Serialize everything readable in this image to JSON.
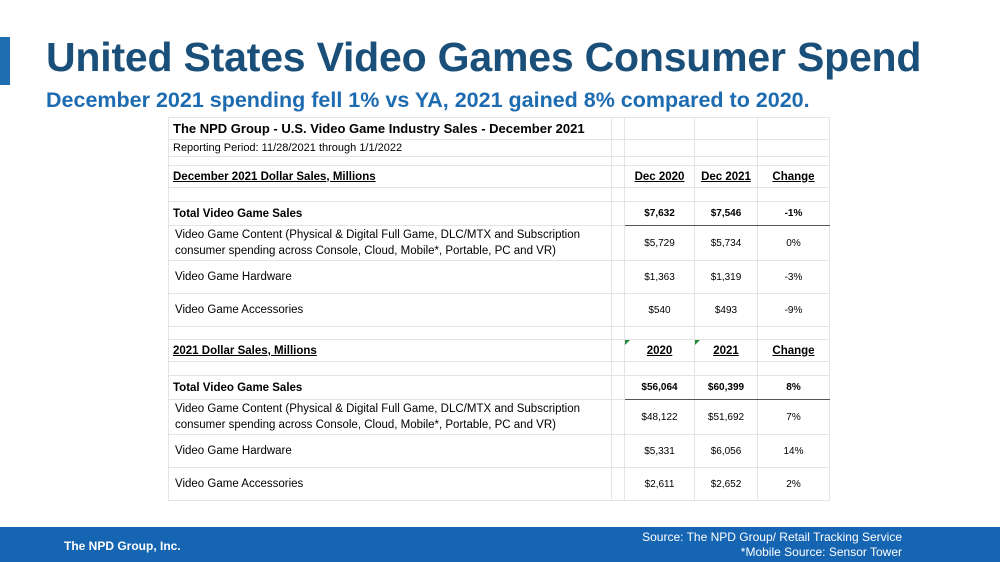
{
  "header": {
    "title": "United States Video Games Consumer Spend",
    "subtitle": "December 2021 spending fell 1% vs YA, 2021 gained 8% compared to 2020."
  },
  "table": {
    "title": "The NPD Group - U.S. Video Game Industry Sales - December 2021",
    "period": "Reporting Period: 11/28/2021 through 1/1/2022",
    "sections": [
      {
        "heading": "December 2021 Dollar Sales, Millions",
        "columns": [
          "Dec 2020",
          "Dec 2021",
          "Change"
        ],
        "total": {
          "label": "Total Video Game Sales",
          "values": [
            "$7,632",
            "$7,546",
            "-1%"
          ]
        },
        "rows": [
          {
            "label": "Video Game Content (Physical & Digital Full Game, DLC/MTX and Subscription consumer spending across Console, Cloud, Mobile*, Portable, PC and VR)",
            "values": [
              "$5,729",
              "$5,734",
              "0%"
            ]
          },
          {
            "label": "Video Game Hardware",
            "values": [
              "$1,363",
              "$1,319",
              "-3%"
            ]
          },
          {
            "label": "Video Game Accessories",
            "values": [
              "$540",
              "$493",
              "-9%"
            ]
          }
        ]
      },
      {
        "heading": "2021 Dollar Sales, Millions",
        "columns": [
          "2020",
          "2021",
          "Change"
        ],
        "total": {
          "label": "Total Video Game Sales",
          "values": [
            "$56,064",
            "$60,399",
            "8%"
          ]
        },
        "rows": [
          {
            "label": "Video Game Content (Physical & Digital Full Game, DLC/MTX and Subscription consumer spending across Console, Cloud, Mobile*, Portable, PC and VR)",
            "values": [
              "$48,122",
              "$51,692",
              "7%"
            ]
          },
          {
            "label": "Video Game Hardware",
            "values": [
              "$5,331",
              "$6,056",
              "14%"
            ]
          },
          {
            "label": "Video Game Accessories",
            "values": [
              "$2,611",
              "$2,652",
              "2%"
            ]
          }
        ]
      }
    ]
  },
  "footer": {
    "company": "The NPD Group, Inc.",
    "source": "Source: The NPD Group/ Retail Tracking Service",
    "mobile_source": "*Mobile Source: Sensor Tower"
  },
  "colors": {
    "title": "#1a4f79",
    "subtitle": "#1d6bb0",
    "footer_band": "#1565b3",
    "accent_bar": "#1f6db3",
    "cell_marker": "#1e8c3a"
  }
}
